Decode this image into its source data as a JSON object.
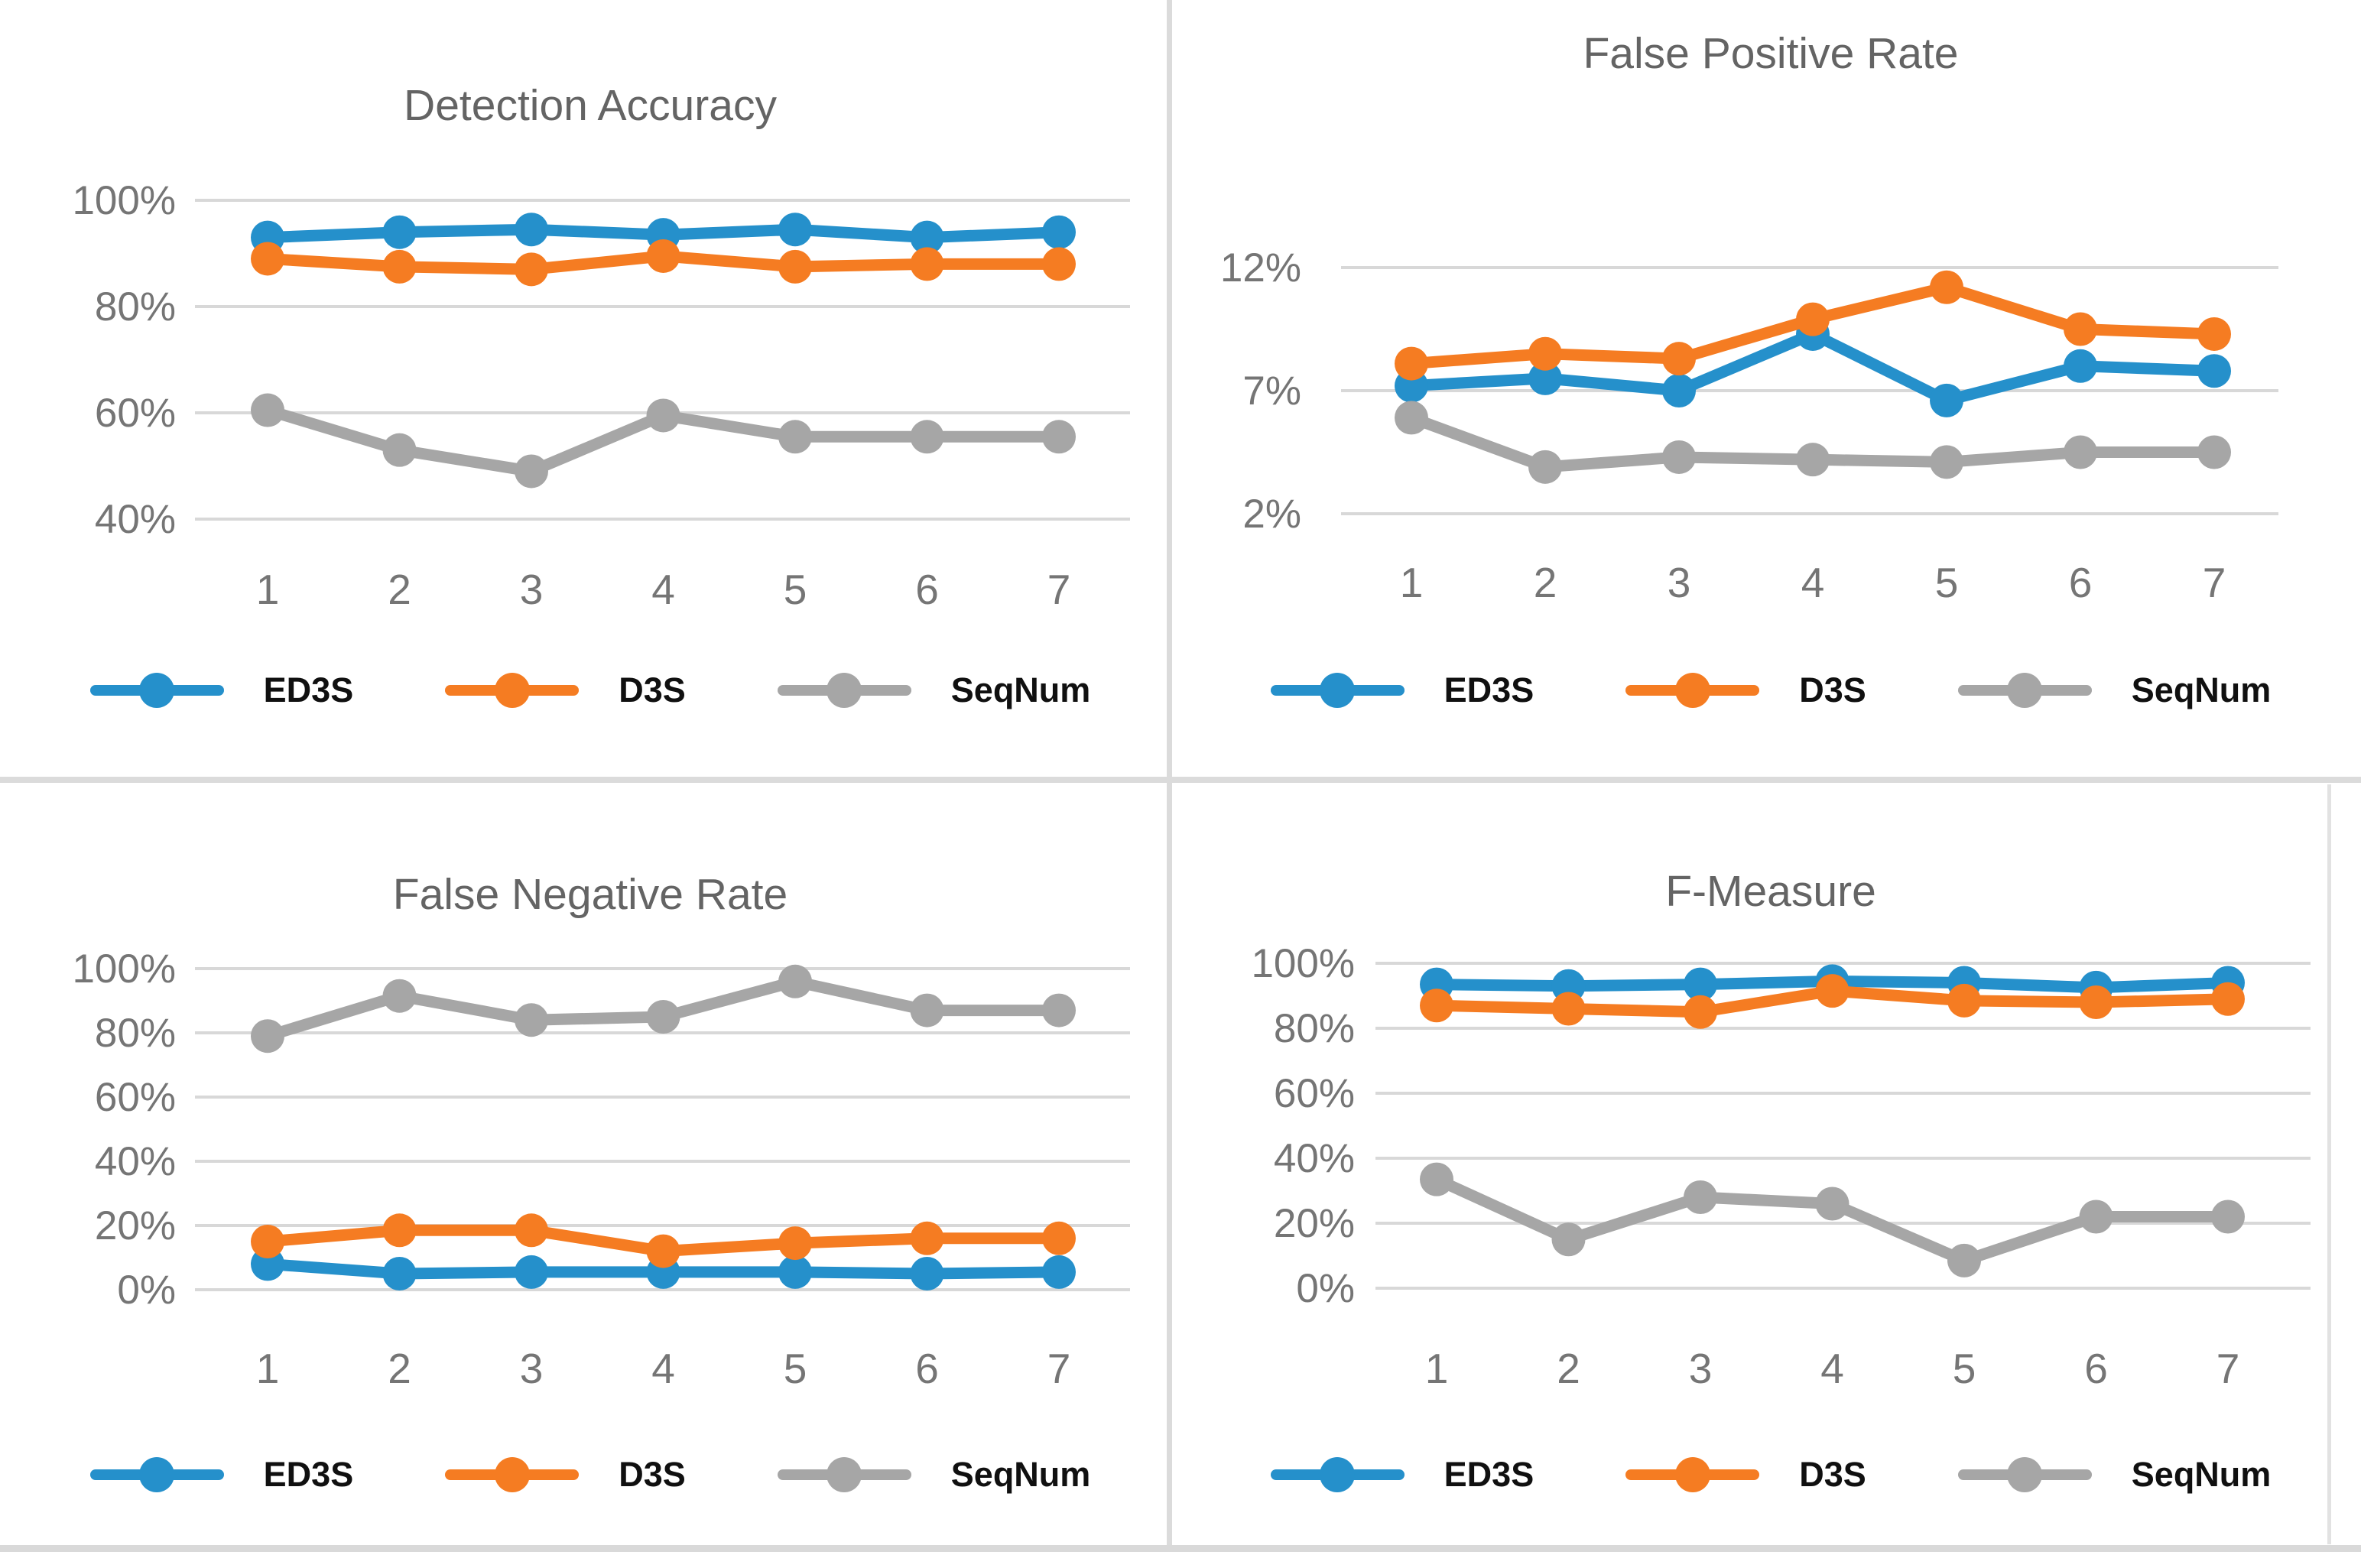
{
  "colors": {
    "ED3S": "#2590CB",
    "D3S": "#F57C22",
    "SeqNum": "#A6A6A6",
    "gridline": "#D8D8D8",
    "axis_text": "#757575",
    "title_text": "#646464"
  },
  "legend_labels": [
    "ED3S",
    "D3S",
    "SeqNum"
  ],
  "chart_data": [
    {
      "type": "line",
      "title": "Detection Accuracy",
      "xlabel": "",
      "ylabel": "",
      "categories": [
        "1",
        "2",
        "3",
        "4",
        "5",
        "6",
        "7"
      ],
      "y_ticks": [
        "100%",
        "80%",
        "60%",
        "40%"
      ],
      "y_tick_values": [
        100,
        80,
        60,
        40
      ],
      "ylim": [
        40,
        105
      ],
      "grid": "horizontal",
      "legend_position": "bottom",
      "series": [
        {
          "name": "ED3S",
          "values": [
            93,
            94,
            94.5,
            93.5,
            94.5,
            93,
            94
          ]
        },
        {
          "name": "D3S",
          "values": [
            89,
            87.5,
            87,
            89.5,
            87.5,
            88,
            88
          ]
        },
        {
          "name": "SeqNum",
          "values": [
            60.5,
            53,
            49,
            59.5,
            55.5,
            55.5,
            55.5
          ]
        }
      ]
    },
    {
      "type": "line",
      "title": "False Positive Rate",
      "xlabel": "",
      "ylabel": "",
      "categories": [
        "1",
        "2",
        "3",
        "4",
        "5",
        "6",
        "7"
      ],
      "y_ticks": [
        "12%",
        "7%",
        "2%"
      ],
      "y_tick_values": [
        12,
        7,
        2
      ],
      "ylim": [
        2,
        13
      ],
      "grid": "horizontal",
      "legend_position": "bottom",
      "series": [
        {
          "name": "ED3S",
          "values": [
            7.2,
            7.5,
            7.0,
            9.3,
            6.6,
            8.0,
            7.8
          ]
        },
        {
          "name": "D3S",
          "values": [
            8.1,
            8.5,
            8.3,
            9.9,
            11.2,
            9.5,
            9.3
          ]
        },
        {
          "name": "SeqNum",
          "values": [
            5.9,
            3.9,
            4.3,
            4.2,
            4.1,
            4.5,
            4.5
          ]
        }
      ]
    },
    {
      "type": "line",
      "title": "False Negative Rate",
      "xlabel": "",
      "ylabel": "",
      "categories": [
        "1",
        "2",
        "3",
        "4",
        "5",
        "6",
        "7"
      ],
      "y_ticks": [
        "100%",
        "80%",
        "60%",
        "40%",
        "20%",
        "0%"
      ],
      "y_tick_values": [
        100,
        80,
        60,
        40,
        20,
        0
      ],
      "ylim": [
        0,
        105
      ],
      "grid": "horizontal",
      "legend_position": "bottom",
      "series": [
        {
          "name": "ED3S",
          "values": [
            8,
            5,
            5.5,
            5.5,
            5.5,
            5,
            5.5
          ]
        },
        {
          "name": "D3S",
          "values": [
            15,
            18.5,
            18.5,
            12,
            14.5,
            16,
            16
          ]
        },
        {
          "name": "SeqNum",
          "values": [
            79,
            91.5,
            84,
            85,
            96,
            87,
            87
          ]
        }
      ]
    },
    {
      "type": "line",
      "title": "F-Measure",
      "xlabel": "",
      "ylabel": "",
      "categories": [
        "1",
        "2",
        "3",
        "4",
        "5",
        "6",
        "7"
      ],
      "y_ticks": [
        "100%",
        "80%",
        "60%",
        "40%",
        "20%",
        "0%"
      ],
      "y_tick_values": [
        100,
        80,
        60,
        40,
        20,
        0
      ],
      "ylim": [
        0,
        105
      ],
      "grid": "horizontal",
      "legend_position": "bottom",
      "series": [
        {
          "name": "ED3S",
          "values": [
            93.5,
            93,
            93.5,
            94.5,
            94,
            92.5,
            94
          ]
        },
        {
          "name": "D3S",
          "values": [
            87,
            86,
            85,
            91.5,
            88.5,
            88,
            89
          ]
        },
        {
          "name": "SeqNum",
          "values": [
            33.5,
            15,
            28,
            26,
            8.5,
            22,
            22
          ]
        }
      ]
    }
  ]
}
